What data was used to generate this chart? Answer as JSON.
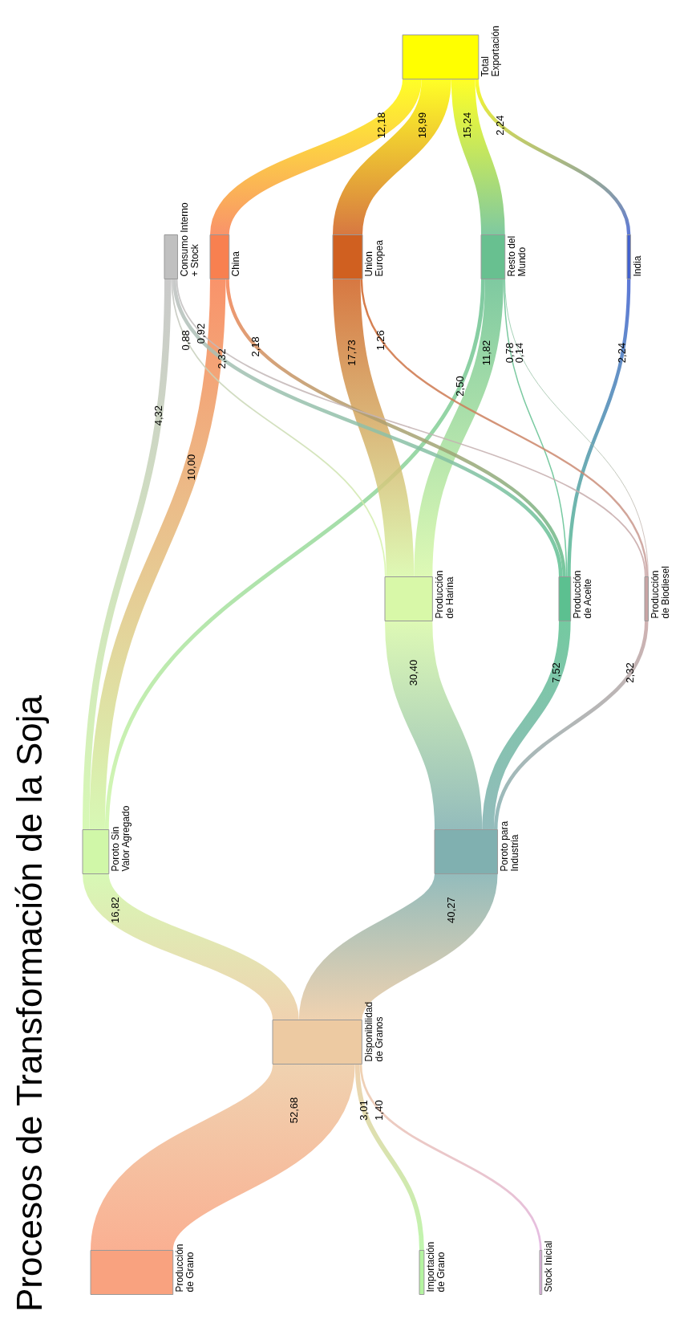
{
  "chart_data": {
    "type": "other",
    "title": "Procesos de Transformación de la Soja",
    "categories": [
      "Producción\nde Grano",
      "Importación\nde Grano",
      "Stock Inicial",
      "Disponibilidad\nde Granos",
      "Poroto Sin\nValor Agregado",
      "Poroto para\nIndustria",
      "Producción\nde Harina",
      "Producción\nde Aceite",
      "Producción\nde Biodiesel",
      "Consumo Interno\n+ Stock",
      "China",
      "Union\nEuropea",
      "Resto del\nMundo",
      "India",
      "Total\nExportación"
    ],
    "colors": [
      "#f9a27f",
      "#b4f4a0",
      "#e0b0e0",
      "#edcaa2",
      "#d0f7a8",
      "#80b0b0",
      "#d8f8a8",
      "#5cc090",
      "#c8a4a4",
      "#c0c0c0",
      "#f88050",
      "#d06020",
      "#68c090",
      "#4060d0",
      "#ffff00"
    ],
    "series": [
      {
        "values": [
          null,
          null,
          null,
          52.68,
          null,
          null,
          null,
          null,
          null,
          null,
          null,
          null,
          null,
          null,
          null
        ],
        "value_labels": [
          null,
          null,
          null,
          "52,68",
          null,
          null,
          null,
          null,
          null,
          null,
          null,
          null,
          null,
          null,
          null
        ]
      },
      {
        "values": [
          null,
          null,
          null,
          3.01,
          null,
          null,
          null,
          null,
          null,
          null,
          null,
          null,
          null,
          null,
          null
        ],
        "value_labels": [
          null,
          null,
          null,
          "3,01",
          null,
          null,
          null,
          null,
          null,
          null,
          null,
          null,
          null,
          null,
          null
        ]
      },
      {
        "values": [
          null,
          null,
          null,
          1.4,
          null,
          null,
          null,
          null,
          null,
          null,
          null,
          null,
          null,
          null,
          null
        ],
        "value_labels": [
          null,
          null,
          null,
          "1,40",
          null,
          null,
          null,
          null,
          null,
          null,
          null,
          null,
          null,
          null,
          null
        ]
      },
      {
        "values": [
          null,
          null,
          null,
          null,
          16.82,
          40.27,
          null,
          null,
          null,
          null,
          null,
          null,
          null,
          null,
          null
        ],
        "value_labels": [
          null,
          null,
          null,
          null,
          "16,82",
          "40,27",
          null,
          null,
          null,
          null,
          null,
          null,
          null,
          null,
          null
        ]
      },
      {
        "values": [
          null,
          null,
          null,
          null,
          null,
          null,
          null,
          null,
          null,
          4.32,
          10.0,
          null,
          2.5,
          null,
          null
        ],
        "value_labels": [
          null,
          null,
          null,
          null,
          null,
          null,
          null,
          null,
          null,
          "4,32",
          "10,00",
          null,
          "2,50",
          null,
          null
        ]
      },
      {
        "values": [
          null,
          null,
          null,
          null,
          null,
          null,
          30.4,
          7.52,
          2.32,
          null,
          null,
          null,
          null,
          null,
          null
        ],
        "value_labels": [
          null,
          null,
          null,
          null,
          null,
          null,
          "30,40",
          "7,52",
          "2,32",
          null,
          null,
          null,
          null,
          null,
          null
        ]
      },
      {
        "values": [
          null,
          null,
          null,
          null,
          null,
          null,
          null,
          null,
          null,
          0.88,
          null,
          17.73,
          11.82,
          null,
          null
        ],
        "value_labels": [
          null,
          null,
          null,
          null,
          null,
          null,
          null,
          null,
          null,
          "0,88",
          null,
          "17,73",
          "11,82",
          null,
          null
        ]
      },
      {
        "values": [
          null,
          null,
          null,
          null,
          null,
          null,
          null,
          null,
          null,
          2.32,
          2.18,
          null,
          0.78,
          2.24,
          null
        ],
        "value_labels": [
          null,
          null,
          null,
          null,
          null,
          null,
          null,
          null,
          null,
          "2,32",
          "2,18",
          null,
          "0,78",
          "2,24",
          null
        ]
      },
      {
        "values": [
          null,
          null,
          null,
          null,
          null,
          null,
          null,
          null,
          null,
          0.92,
          null,
          1.26,
          0.14,
          null,
          null
        ],
        "value_labels": [
          null,
          null,
          null,
          null,
          null,
          null,
          null,
          null,
          null,
          "0,92",
          null,
          "1,26",
          "0,14",
          null,
          null
        ]
      },
      {
        "values": [
          null,
          null,
          null,
          null,
          null,
          null,
          null,
          null,
          null,
          null,
          null,
          null,
          null,
          null,
          null
        ],
        "value_labels": [
          null,
          null,
          null,
          null,
          null,
          null,
          null,
          null,
          null,
          null,
          null,
          null,
          null,
          null,
          null
        ]
      },
      {
        "values": [
          null,
          null,
          null,
          null,
          null,
          null,
          null,
          null,
          null,
          null,
          null,
          null,
          null,
          null,
          12.18
        ],
        "value_labels": [
          null,
          null,
          null,
          null,
          null,
          null,
          null,
          null,
          null,
          null,
          null,
          null,
          null,
          null,
          "12,18"
        ]
      },
      {
        "values": [
          null,
          null,
          null,
          null,
          null,
          null,
          null,
          null,
          null,
          null,
          null,
          null,
          null,
          null,
          18.99
        ],
        "value_labels": [
          null,
          null,
          null,
          null,
          null,
          null,
          null,
          null,
          null,
          null,
          null,
          null,
          null,
          null,
          "18,99"
        ]
      },
      {
        "values": [
          null,
          null,
          null,
          null,
          null,
          null,
          null,
          null,
          null,
          null,
          null,
          null,
          null,
          null,
          15.24
        ],
        "value_labels": [
          null,
          null,
          null,
          null,
          null,
          null,
          null,
          null,
          null,
          null,
          null,
          null,
          null,
          null,
          "15,24"
        ]
      },
      {
        "values": [
          null,
          null,
          null,
          null,
          null,
          null,
          null,
          null,
          null,
          null,
          null,
          null,
          null,
          null,
          2.24
        ],
        "value_labels": [
          null,
          null,
          null,
          null,
          null,
          null,
          null,
          null,
          null,
          null,
          null,
          null,
          null,
          null,
          "2,24"
        ]
      },
      {
        "values": [
          null,
          null,
          null,
          null,
          null,
          null,
          null,
          null,
          null,
          null,
          null,
          null,
          null,
          null,
          null
        ],
        "value_labels": [
          null,
          null,
          null,
          null,
          null,
          null,
          null,
          null,
          null,
          null,
          null,
          null,
          null,
          null,
          null
        ]
      }
    ]
  }
}
